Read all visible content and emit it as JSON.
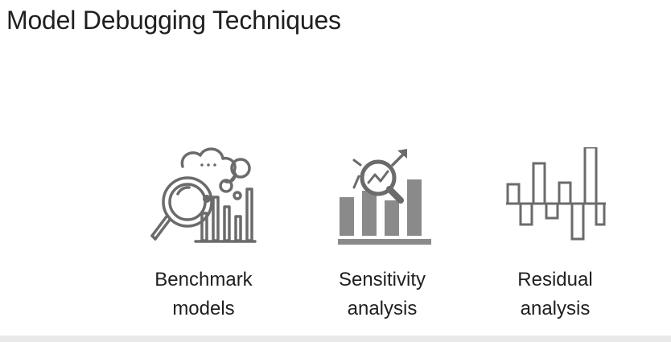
{
  "slide": {
    "title": "Model Debugging Techniques"
  },
  "techniques": [
    {
      "icon": "benchmark-magnifier-chart-icon",
      "line1": "Benchmark",
      "line2": "models"
    },
    {
      "icon": "sensitivity-magnifier-bars-icon",
      "line1": "Sensitivity",
      "line2": "analysis"
    },
    {
      "icon": "residual-bars-icon",
      "line1": "Residual",
      "line2": "analysis"
    }
  ],
  "colors": {
    "icon_stroke": "#6b6b6b",
    "icon_fill": "#8a8a8a",
    "text": "#1f1f1f",
    "background": "#ffffff"
  }
}
